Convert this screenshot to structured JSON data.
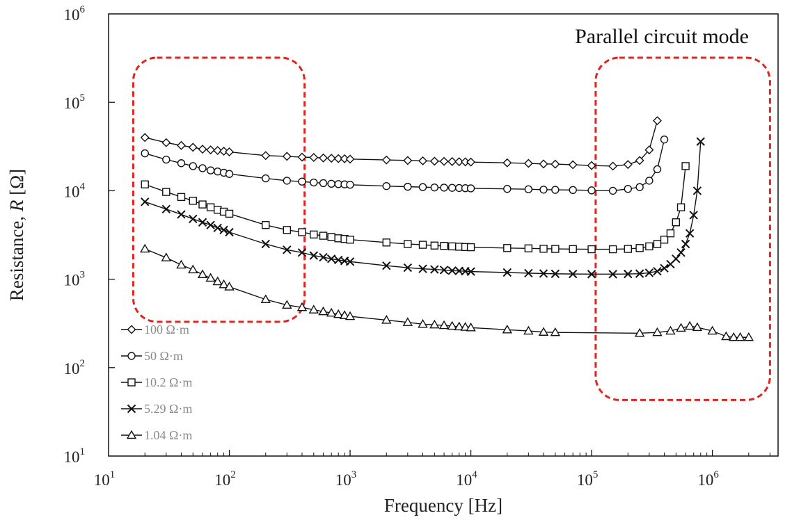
{
  "chart_data": {
    "type": "line",
    "title": "",
    "annotation": "Parallel circuit mode",
    "xlabel": "Frequency [Hz]",
    "ylabel_prefix": "Resistance, ",
    "ylabel_var": "R",
    "ylabel_suffix": " [Ω]",
    "x_scale": "log",
    "y_scale": "log",
    "xlim": [
      10,
      3500000
    ],
    "ylim": [
      10,
      1000000
    ],
    "x_ticks": [
      {
        "base": "10",
        "exp": "1",
        "value": 10
      },
      {
        "base": "10",
        "exp": "2",
        "value": 100
      },
      {
        "base": "10",
        "exp": "3",
        "value": 1000
      },
      {
        "base": "10",
        "exp": "4",
        "value": 10000
      },
      {
        "base": "10",
        "exp": "5",
        "value": 100000
      },
      {
        "base": "10",
        "exp": "6",
        "value": 1000000
      }
    ],
    "y_ticks": [
      {
        "base": "10",
        "exp": "1",
        "value": 10
      },
      {
        "base": "10",
        "exp": "2",
        "value": 100
      },
      {
        "base": "10",
        "exp": "3",
        "value": 1000
      },
      {
        "base": "10",
        "exp": "4",
        "value": 10000
      },
      {
        "base": "10",
        "exp": "5",
        "value": 100000
      },
      {
        "base": "10",
        "exp": "6",
        "value": 1000000
      }
    ],
    "grid": false,
    "legend_position": "bottom-left",
    "colors": {
      "line": "#111111",
      "highlight": "#e3231e",
      "legend_text": "#8a8a8a"
    },
    "highlight_regions": [
      {
        "x_range": [
          16,
          420
        ],
        "y_range": [
          330,
          320000
        ]
      },
      {
        "x_range": [
          108000,
          3000000
        ],
        "y_range": [
          43,
          320000
        ]
      }
    ],
    "series": [
      {
        "name": "100 Ω·m",
        "marker": "diamond",
        "points": [
          [
            20,
            40000
          ],
          [
            30,
            35000
          ],
          [
            40,
            32500
          ],
          [
            50,
            31000
          ],
          [
            60,
            29500
          ],
          [
            70,
            29000
          ],
          [
            80,
            28500
          ],
          [
            90,
            28000
          ],
          [
            100,
            27500
          ],
          [
            200,
            25000
          ],
          [
            300,
            24500
          ],
          [
            400,
            24000
          ],
          [
            500,
            23800
          ],
          [
            600,
            23500
          ],
          [
            700,
            23300
          ],
          [
            800,
            23100
          ],
          [
            900,
            23000
          ],
          [
            1000,
            22800
          ],
          [
            2000,
            22300
          ],
          [
            3000,
            22000
          ],
          [
            4000,
            21800
          ],
          [
            5000,
            21600
          ],
          [
            6000,
            21500
          ],
          [
            7000,
            21400
          ],
          [
            8000,
            21300
          ],
          [
            9000,
            21200
          ],
          [
            10000,
            21100
          ],
          [
            20000,
            20700
          ],
          [
            30000,
            20400
          ],
          [
            40000,
            20100
          ],
          [
            50000,
            20000
          ],
          [
            70000,
            19700
          ],
          [
            100000,
            19300
          ],
          [
            150000,
            19000
          ],
          [
            200000,
            19800
          ],
          [
            250000,
            22000
          ],
          [
            300000,
            29000
          ],
          [
            350000,
            62000
          ]
        ]
      },
      {
        "name": "50 Ω·m",
        "marker": "circle",
        "points": [
          [
            20,
            26500
          ],
          [
            30,
            22500
          ],
          [
            40,
            20500
          ],
          [
            50,
            19000
          ],
          [
            60,
            18000
          ],
          [
            70,
            17000
          ],
          [
            80,
            16500
          ],
          [
            90,
            16000
          ],
          [
            100,
            15500
          ],
          [
            200,
            13800
          ],
          [
            300,
            13000
          ],
          [
            400,
            12700
          ],
          [
            500,
            12400
          ],
          [
            600,
            12200
          ],
          [
            700,
            12000
          ],
          [
            800,
            11900
          ],
          [
            900,
            11800
          ],
          [
            1000,
            11700
          ],
          [
            2000,
            11300
          ],
          [
            3000,
            11100
          ],
          [
            4000,
            11000
          ],
          [
            5000,
            10900
          ],
          [
            6000,
            10850
          ],
          [
            7000,
            10800
          ],
          [
            8000,
            10750
          ],
          [
            9000,
            10700
          ],
          [
            10000,
            10650
          ],
          [
            20000,
            10500
          ],
          [
            30000,
            10400
          ],
          [
            40000,
            10300
          ],
          [
            50000,
            10250
          ],
          [
            70000,
            10200
          ],
          [
            100000,
            10100
          ],
          [
            150000,
            10000
          ],
          [
            200000,
            10500
          ],
          [
            250000,
            11000
          ],
          [
            300000,
            13000
          ],
          [
            350000,
            17500
          ],
          [
            400000,
            38000
          ]
        ]
      },
      {
        "name": "10.2 Ω·m",
        "marker": "square",
        "points": [
          [
            20,
            11800
          ],
          [
            30,
            9700
          ],
          [
            40,
            8500
          ],
          [
            50,
            7700
          ],
          [
            60,
            7000
          ],
          [
            70,
            6500
          ],
          [
            80,
            6100
          ],
          [
            90,
            5800
          ],
          [
            100,
            5500
          ],
          [
            200,
            4100
          ],
          [
            300,
            3600
          ],
          [
            400,
            3400
          ],
          [
            500,
            3200
          ],
          [
            600,
            3100
          ],
          [
            700,
            3000
          ],
          [
            800,
            2900
          ],
          [
            900,
            2850
          ],
          [
            1000,
            2800
          ],
          [
            2000,
            2600
          ],
          [
            3000,
            2500
          ],
          [
            4000,
            2450
          ],
          [
            5000,
            2400
          ],
          [
            6000,
            2380
          ],
          [
            7000,
            2350
          ],
          [
            8000,
            2330
          ],
          [
            9000,
            2310
          ],
          [
            10000,
            2300
          ],
          [
            20000,
            2250
          ],
          [
            30000,
            2230
          ],
          [
            40000,
            2210
          ],
          [
            50000,
            2200
          ],
          [
            70000,
            2190
          ],
          [
            100000,
            2180
          ],
          [
            150000,
            2180
          ],
          [
            200000,
            2200
          ],
          [
            250000,
            2250
          ],
          [
            300000,
            2350
          ],
          [
            350000,
            2500
          ],
          [
            400000,
            2800
          ],
          [
            450000,
            3300
          ],
          [
            500000,
            4400
          ],
          [
            550000,
            6500
          ],
          [
            600000,
            19000
          ]
        ]
      },
      {
        "name": "5.29 Ω·m",
        "marker": "x",
        "points": [
          [
            20,
            7500
          ],
          [
            30,
            6200
          ],
          [
            40,
            5400
          ],
          [
            50,
            4800
          ],
          [
            60,
            4400
          ],
          [
            70,
            4100
          ],
          [
            80,
            3800
          ],
          [
            90,
            3600
          ],
          [
            100,
            3400
          ],
          [
            200,
            2500
          ],
          [
            300,
            2150
          ],
          [
            400,
            2000
          ],
          [
            500,
            1850
          ],
          [
            600,
            1770
          ],
          [
            700,
            1700
          ],
          [
            800,
            1650
          ],
          [
            900,
            1610
          ],
          [
            1000,
            1580
          ],
          [
            2000,
            1420
          ],
          [
            3000,
            1350
          ],
          [
            4000,
            1310
          ],
          [
            5000,
            1290
          ],
          [
            6000,
            1270
          ],
          [
            7000,
            1250
          ],
          [
            8000,
            1240
          ],
          [
            9000,
            1230
          ],
          [
            10000,
            1220
          ],
          [
            20000,
            1190
          ],
          [
            30000,
            1170
          ],
          [
            40000,
            1160
          ],
          [
            50000,
            1150
          ],
          [
            70000,
            1145
          ],
          [
            100000,
            1140
          ],
          [
            150000,
            1140
          ],
          [
            200000,
            1145
          ],
          [
            250000,
            1155
          ],
          [
            300000,
            1180
          ],
          [
            350000,
            1230
          ],
          [
            400000,
            1330
          ],
          [
            450000,
            1480
          ],
          [
            500000,
            1700
          ],
          [
            550000,
            2000
          ],
          [
            600000,
            2500
          ],
          [
            650000,
            3300
          ],
          [
            700000,
            5300
          ],
          [
            750000,
            10000
          ],
          [
            800000,
            36000
          ]
        ]
      },
      {
        "name": "1.04 Ω·m",
        "marker": "triangle",
        "points": [
          [
            20,
            2200
          ],
          [
            30,
            1750
          ],
          [
            40,
            1450
          ],
          [
            50,
            1280
          ],
          [
            60,
            1130
          ],
          [
            70,
            1030
          ],
          [
            80,
            940
          ],
          [
            90,
            870
          ],
          [
            100,
            820
          ],
          [
            200,
            590
          ],
          [
            300,
            510
          ],
          [
            400,
            480
          ],
          [
            500,
            450
          ],
          [
            600,
            430
          ],
          [
            700,
            415
          ],
          [
            800,
            400
          ],
          [
            900,
            390
          ],
          [
            1000,
            380
          ],
          [
            2000,
            345
          ],
          [
            3000,
            325
          ],
          [
            4000,
            310
          ],
          [
            5000,
            305
          ],
          [
            6000,
            300
          ],
          [
            7000,
            295
          ],
          [
            8000,
            290
          ],
          [
            9000,
            287
          ],
          [
            10000,
            283
          ],
          [
            20000,
            268
          ],
          [
            30000,
            260
          ],
          [
            40000,
            252
          ],
          [
            50000,
            250
          ],
          [
            250000,
            245
          ],
          [
            350000,
            250
          ],
          [
            450000,
            260
          ],
          [
            550000,
            280
          ],
          [
            650000,
            295
          ],
          [
            750000,
            285
          ],
          [
            1000000,
            260
          ],
          [
            1300000,
            225
          ],
          [
            1500000,
            220
          ],
          [
            1700000,
            220
          ],
          [
            2000000,
            220
          ]
        ]
      }
    ]
  }
}
